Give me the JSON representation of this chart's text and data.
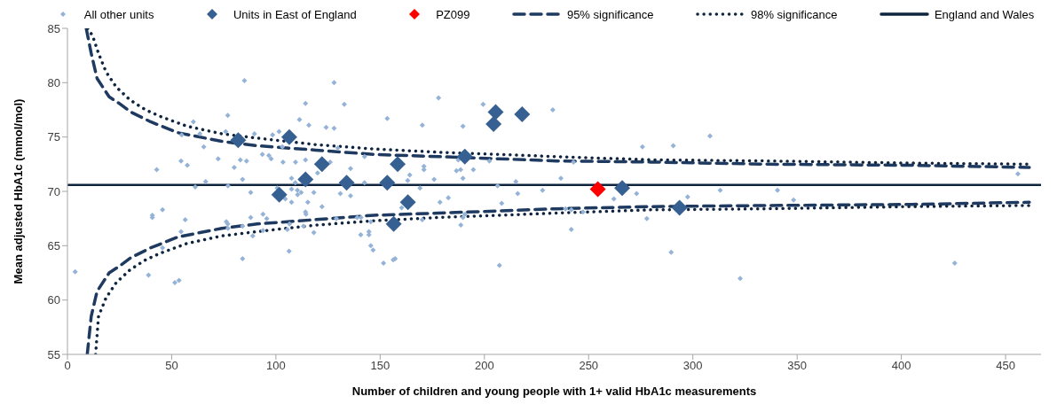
{
  "chart_data": {
    "type": "scatter",
    "xlabel": "Number of children and young people with 1+ valid HbA1c measurements",
    "ylabel": "Mean adjusted HbA1c (mmol/mol)",
    "xlim": [
      0,
      467
    ],
    "ylim": [
      55,
      85
    ],
    "xticks": [
      0,
      50,
      100,
      150,
      200,
      250,
      300,
      350,
      400,
      450
    ],
    "yticks": [
      55,
      60,
      65,
      70,
      75,
      80,
      85
    ],
    "grid": false,
    "legend": "top",
    "series": [
      {
        "name": "All other units",
        "color": "#95b3d7",
        "marker": "diamond",
        "x": [
          76.9,
          60.4,
          75.9,
          63.5,
          54.8,
          65.4,
          72.3,
          54.5,
          57.5,
          80.0,
          42.8,
          66.3,
          61.3,
          77.0,
          45.6,
          40.7,
          40.7,
          56.5,
          76.2,
          77.0,
          54.5,
          45.6,
          3.7,
          38.9,
          51.5,
          53.5,
          84.9,
          127.9,
          114.2,
          132.8,
          111.3,
          115.8,
          124.1,
          127.9,
          153.4,
          89.7,
          98.4,
          101.5,
          103.1,
          129.7,
          93.5,
          96.6,
          97.7,
          82.9,
          85.9,
          103.4,
          109.4,
          114.2,
          126.0,
          142.5,
          135.8,
          120.0,
          84.0,
          107.5,
          109.3,
          142.5,
          87.9,
          100.6,
          107.5,
          110.3,
          112.1,
          110.4,
          118.2,
          130.9,
          135.8,
          104.5,
          107.5,
          115.3,
          122.1,
          114.2,
          114.4,
          93.8,
          95.6,
          87.9,
          76.9,
          84.0,
          88.9,
          93.8,
          106.5,
          105.5,
          113.2,
          118.2,
          129.0,
          139.0,
          140.8,
          145.5,
          144.6,
          144.6,
          140.7,
          145.5,
          146.6,
          106.3,
          84.0,
          151.6,
          156.3,
          160.3,
          178.0,
          199.4,
          170.2,
          189.7,
          232.8,
          171.0,
          171.0,
          164.2,
          163.2,
          175.9,
          186.6,
          188.6,
          194.7,
          189.7,
          202.4,
          187.5,
          215.1,
          236.7,
          169.1,
          206.3,
          178.7,
          182.7,
          208.3,
          216.0,
          227.9,
          238.9,
          241.7,
          190.7,
          189.7,
          170.2,
          188.7,
          241.7,
          207.2,
          157.2,
          275.8,
          290.6,
          308.2,
          242.7,
          273.0,
          262.1,
          297.5,
          313.1,
          340.6,
          247.3,
          277.9,
          289.6,
          322.7,
          348.3,
          455.9,
          425.6
        ],
        "values": [
          77.0,
          76.4,
          75.5,
          75.3,
          75.2,
          74.1,
          73.0,
          72.8,
          72.4,
          72.2,
          72.0,
          70.9,
          70.4,
          70.5,
          68.3,
          67.8,
          67.6,
          67.4,
          67.2,
          66.6,
          66.3,
          64.8,
          62.6,
          62.3,
          61.6,
          61.8,
          80.2,
          80.0,
          78.1,
          78.0,
          76.6,
          76.1,
          75.9,
          75.8,
          76.7,
          75.3,
          75.2,
          75.5,
          74.1,
          74.0,
          73.4,
          73.3,
          73.0,
          72.9,
          72.8,
          72.7,
          72.7,
          72.9,
          72.7,
          73.2,
          72.1,
          71.7,
          71.1,
          71.2,
          70.8,
          70.8,
          69.9,
          70.3,
          70.2,
          70.1,
          69.9,
          69.7,
          69.9,
          69.8,
          69.6,
          69.3,
          69.0,
          69.0,
          68.6,
          68.1,
          67.9,
          67.9,
          67.5,
          67.6,
          67.0,
          66.8,
          65.9,
          66.4,
          67.0,
          66.5,
          66.8,
          66.2,
          67.5,
          67.6,
          67.6,
          67.2,
          66.3,
          66.0,
          66.0,
          65.0,
          64.6,
          64.5,
          63.8,
          63.4,
          63.7,
          68.5,
          78.6,
          78.0,
          76.1,
          76.0,
          77.5,
          72.3,
          72.0,
          71.5,
          71.0,
          71.1,
          71.9,
          72.0,
          72.0,
          71.2,
          72.8,
          72.9,
          70.9,
          71.2,
          70.3,
          70.5,
          69.0,
          69.4,
          68.9,
          69.8,
          70.1,
          68.4,
          68.3,
          67.9,
          67.6,
          67.4,
          66.9,
          66.5,
          63.2,
          63.8,
          74.1,
          74.2,
          75.1,
          72.7,
          69.8,
          69.3,
          69.5,
          70.1,
          70.1,
          68.1,
          67.5,
          64.4,
          62.0,
          69.2,
          71.6,
          63.4
        ]
      },
      {
        "name": "Units in East of England",
        "color": "#376092",
        "marker": "diamond",
        "x": [
          81.9,
          106.4,
          122.1,
          114.2,
          101.6,
          133.9,
          153.4,
          158.4,
          156.5,
          163.3,
          190.6,
          205.4,
          204.4,
          218.1,
          266.1,
          293.6
        ],
        "values": [
          74.7,
          75.0,
          72.5,
          71.1,
          69.7,
          70.8,
          70.8,
          72.5,
          67.0,
          69.0,
          73.2,
          77.3,
          76.2,
          77.1,
          70.3,
          68.5
        ]
      },
      {
        "name": "PZ099",
        "color": "#ff0000",
        "marker": "diamond",
        "x": [
          254.4
        ],
        "values": [
          70.2
        ]
      },
      {
        "name": "95% significance",
        "type": "line",
        "color": "#1f3a60",
        "line_style": "dashed",
        "x": [
          9.0,
          11.4,
          14.2,
          20.0,
          24.8,
          30.4,
          39.9,
          53.0,
          74.0,
          91.0,
          119.0,
          147.0,
          178.0,
          206.5,
          234.6,
          279.7,
          336.0,
          405.0,
          461.4
        ],
        "values": [
          85,
          82.7,
          80.4,
          78.7,
          78.1,
          77.3,
          76.4,
          75.4,
          74.6,
          74.2,
          73.8,
          73.4,
          73.2,
          73.0,
          72.8,
          72.7,
          72.5,
          72.4,
          72.2
        ]
      },
      {
        "type": "line",
        "color": "#1f3a60",
        "line_style": "dashed",
        "x": [
          9.5,
          11.4,
          14.2,
          20.0,
          24.8,
          30.4,
          39.9,
          53.0,
          74.0,
          91.0,
          119.0,
          147.0,
          178.0,
          206.5,
          234.6,
          279.7,
          336.0,
          405.0,
          461.4
        ],
        "values": [
          55,
          58.5,
          60.8,
          62.5,
          63.1,
          63.9,
          64.8,
          65.8,
          66.6,
          67.0,
          67.4,
          67.8,
          68.0,
          68.2,
          68.4,
          68.6,
          68.7,
          68.8,
          69.0
        ]
      },
      {
        "name": "98% significance",
        "type": "line",
        "color": "#0f243e",
        "line_style": "dotted",
        "x": [
          9.7,
          12.1,
          14.9,
          18.5,
          23.4,
          30.1,
          37.5,
          44.5,
          57.2,
          74.0,
          91.0,
          119.2,
          147.3,
          178.3,
          206.5,
          234.6,
          279.7,
          336.0,
          405.0,
          461.4
        ],
        "values": [
          85,
          84.3,
          82.7,
          81.0,
          79.6,
          78.4,
          77.5,
          76.9,
          76.0,
          75.3,
          74.9,
          74.3,
          73.9,
          73.6,
          73.4,
          73.2,
          72.9,
          72.8,
          72.6,
          72.5
        ]
      },
      {
        "type": "line",
        "color": "#0f243e",
        "line_style": "dotted",
        "x": [
          13.5,
          14.9,
          18.5,
          23.4,
          30.1,
          37.5,
          44.5,
          57.2,
          74.0,
          91.0,
          119.2,
          147.3,
          178.3,
          206.5,
          234.6,
          279.7,
          336.0,
          405.0,
          461.4
        ],
        "values": [
          55,
          58.5,
          60.2,
          61.6,
          62.8,
          63.7,
          64.3,
          65.2,
          65.9,
          66.3,
          66.9,
          67.3,
          67.6,
          67.8,
          68.0,
          68.3,
          68.4,
          68.6,
          68.7
        ]
      },
      {
        "name": "England and Wales",
        "type": "line",
        "color": "#0f243e",
        "line_style": "solid",
        "x": [
          0,
          467
        ],
        "values": [
          70.6,
          70.6
        ]
      }
    ]
  }
}
